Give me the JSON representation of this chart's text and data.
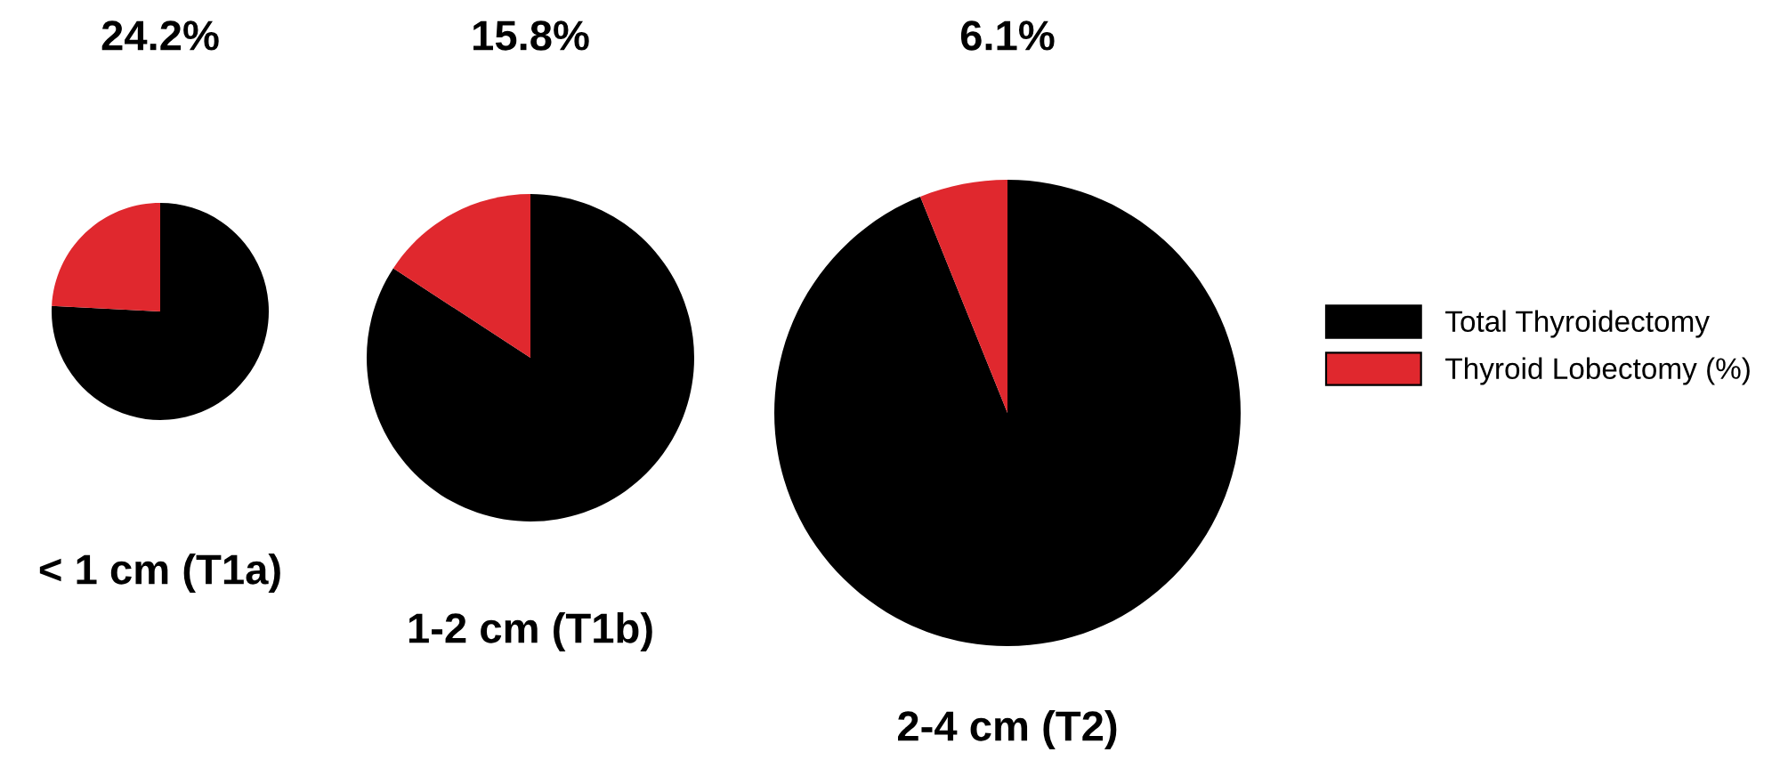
{
  "chart_data": [
    {
      "type": "pie",
      "title": "24.2%",
      "xlabel": "< 1 cm (T1a)",
      "categories": [
        "Total Thyroidectomy",
        "Thyroid Lobectomy (%)"
      ],
      "values": [
        75.8,
        24.2
      ],
      "colors": [
        "#000000",
        "#e0282e"
      ],
      "legend": "right"
    },
    {
      "type": "pie",
      "title": "15.8%",
      "xlabel": "1-2 cm (T1b)",
      "categories": [
        null,
        null
      ],
      "values": [
        84.2,
        15.8
      ],
      "colors": [
        "#000000",
        "#e0282e"
      ]
    },
    {
      "type": "pie",
      "title": "6.1%",
      "xlabel": "2-4 cm (T2)",
      "categories": [
        null,
        null
      ],
      "values": [
        93.9,
        6.1
      ],
      "colors": [
        "#000000",
        "#e0282e"
      ]
    }
  ]
}
